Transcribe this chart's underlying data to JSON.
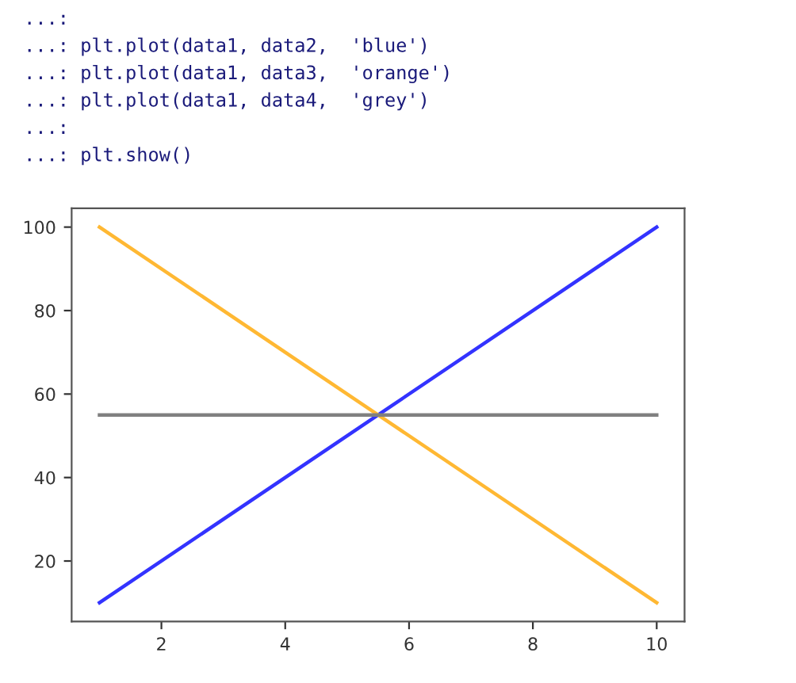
{
  "chart_data": {
    "type": "line",
    "annotations": [
      "...:",
      "...: plt.plot(data1, data2,  'blue')",
      "...: plt.plot(data1, data3,  'orange')",
      "...: plt.plot(data1, data4,  'grey')",
      "...:",
      "...: plt.show()"
    ],
    "x": [
      1,
      10
    ],
    "series": [
      {
        "color": "#3333ff",
        "values": [
          10,
          100
        ]
      },
      {
        "color": "#ffb833",
        "values": [
          100,
          10
        ]
      },
      {
        "color": "#808080",
        "values": [
          55,
          55
        ]
      }
    ],
    "xlim": [
      0.55,
      10.45
    ],
    "xticks": [
      2,
      4,
      6,
      8,
      10
    ],
    "ylim": [
      5.5,
      104.5
    ],
    "yticks": [
      20,
      40,
      60,
      80,
      100
    ],
    "grid": false,
    "legend": false
  }
}
